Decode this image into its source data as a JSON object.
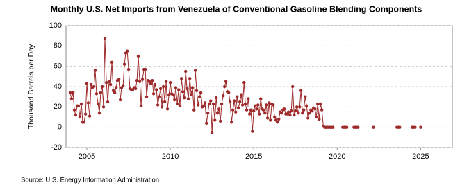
{
  "chart_data": {
    "type": "line",
    "title": "Monthly U.S. Net Imports from Venezuela of Conventional Gasoline Blending Components",
    "y_label": "Thousand Barrels per Day",
    "source": "Source: U.S. Energy Information Administration",
    "color": "#9e2a2b",
    "grid": true,
    "xlim": [
      2003.75,
      2026.9
    ],
    "xticks": [
      2005,
      2010,
      2015,
      2020,
      2025
    ],
    "ylim": [
      -20,
      100
    ],
    "yticks": [
      -20,
      0,
      20,
      40,
      60,
      80,
      100
    ],
    "x": [
      2004.0,
      2004.08,
      2004.17,
      2004.25,
      2004.33,
      2004.42,
      2004.5,
      2004.58,
      2004.67,
      2004.75,
      2004.83,
      2004.92,
      2005.0,
      2005.08,
      2005.17,
      2005.25,
      2005.33,
      2005.42,
      2005.5,
      2005.58,
      2005.67,
      2005.75,
      2005.83,
      2005.92,
      2006.0,
      2006.08,
      2006.17,
      2006.25,
      2006.33,
      2006.42,
      2006.5,
      2006.58,
      2006.67,
      2006.75,
      2006.83,
      2006.92,
      2007.0,
      2007.08,
      2007.17,
      2007.25,
      2007.33,
      2007.42,
      2007.5,
      2007.58,
      2007.67,
      2007.75,
      2007.83,
      2007.92,
      2008.0,
      2008.08,
      2008.17,
      2008.25,
      2008.33,
      2008.42,
      2008.5,
      2008.58,
      2008.67,
      2008.75,
      2008.83,
      2008.92,
      2009.0,
      2009.08,
      2009.17,
      2009.25,
      2009.33,
      2009.42,
      2009.5,
      2009.58,
      2009.67,
      2009.75,
      2009.83,
      2009.92,
      2010.0,
      2010.08,
      2010.17,
      2010.25,
      2010.33,
      2010.42,
      2010.5,
      2010.58,
      2010.67,
      2010.75,
      2010.83,
      2010.92,
      2011.0,
      2011.08,
      2011.17,
      2011.25,
      2011.33,
      2011.42,
      2011.5,
      2011.58,
      2011.67,
      2011.75,
      2011.83,
      2011.92,
      2012.0,
      2012.08,
      2012.17,
      2012.25,
      2012.33,
      2012.42,
      2012.5,
      2012.58,
      2012.67,
      2012.75,
      2012.83,
      2012.92,
      2013.0,
      2013.08,
      2013.17,
      2013.25,
      2013.33,
      2013.42,
      2013.5,
      2013.58,
      2013.67,
      2013.75,
      2013.83,
      2013.92,
      2014.0,
      2014.08,
      2014.17,
      2014.25,
      2014.33,
      2014.42,
      2014.5,
      2014.58,
      2014.67,
      2014.75,
      2014.83,
      2014.92,
      2015.0,
      2015.08,
      2015.17,
      2015.25,
      2015.33,
      2015.42,
      2015.5,
      2015.58,
      2015.67,
      2015.75,
      2015.83,
      2015.92,
      2016.0,
      2016.08,
      2016.17,
      2016.25,
      2016.33,
      2016.42,
      2016.5,
      2016.58,
      2016.67,
      2016.75,
      2016.83,
      2016.92,
      2017.0,
      2017.08,
      2017.17,
      2017.25,
      2017.33,
      2017.42,
      2017.5,
      2017.58,
      2017.67,
      2017.75,
      2017.83,
      2017.92,
      2018.0,
      2018.08,
      2018.17,
      2018.25,
      2018.33,
      2018.42,
      2018.5,
      2018.58,
      2018.67,
      2018.75,
      2018.83,
      2018.92,
      2019.0,
      2019.08,
      2019.17,
      2019.25,
      2019.33,
      2019.42,
      2019.5,
      2019.58,
      2019.67,
      2019.75,
      2020.0,
      2020.33,
      2020.42,
      2020.5,
      2020.58,
      2020.75,
      2021.0,
      2021.08,
      2021.17,
      2021.25,
      2021.5,
      2022.17,
      2022.5,
      2023.58,
      2023.67,
      2023.75,
      2024.0,
      2024.5,
      2024.58,
      2024.67,
      2024.83,
      2025.0
    ],
    "values": [
      34,
      28,
      34,
      17,
      12,
      21,
      21,
      10,
      23,
      5,
      5,
      13,
      43,
      24,
      11,
      42,
      39,
      40,
      56,
      33,
      23,
      14,
      34,
      40,
      20,
      87,
      44,
      25,
      45,
      42,
      64,
      36,
      34,
      39,
      46,
      47,
      27,
      39,
      41,
      62,
      73,
      75,
      57,
      38,
      37,
      37,
      39,
      38,
      46,
      70,
      45,
      21,
      47,
      57,
      57,
      30,
      46,
      45,
      43,
      46,
      33,
      42,
      37,
      22,
      30,
      38,
      20,
      40,
      25,
      45,
      18,
      32,
      44,
      33,
      32,
      27,
      39,
      23,
      37,
      21,
      48,
      35,
      29,
      55,
      38,
      28,
      48,
      32,
      39,
      17,
      56,
      36,
      22,
      30,
      34,
      20,
      21,
      24,
      4,
      14,
      23,
      26,
      -5,
      23,
      7,
      29,
      14,
      18,
      6,
      23,
      31,
      40,
      45,
      35,
      34,
      25,
      5,
      17,
      26,
      15,
      30,
      19,
      25,
      32,
      22,
      44,
      23,
      17,
      28,
      13,
      17,
      -4,
      16,
      21,
      18,
      22,
      13,
      28,
      18,
      17,
      14,
      22,
      9,
      24,
      7,
      23,
      22,
      10,
      7,
      5,
      8,
      15,
      14,
      17,
      18,
      13,
      13,
      15,
      12,
      16,
      40,
      12,
      16,
      20,
      14,
      20,
      36,
      14,
      17,
      30,
      21,
      9,
      14,
      17,
      16,
      19,
      18,
      10,
      23,
      8,
      23,
      17,
      1,
      0,
      0,
      0,
      0,
      0,
      0,
      0,
      null,
      0,
      0,
      0,
      0,
      null,
      0,
      0,
      0,
      0,
      null,
      0,
      null,
      0,
      0,
      0,
      null,
      0,
      0,
      0,
      null,
      0
    ]
  }
}
